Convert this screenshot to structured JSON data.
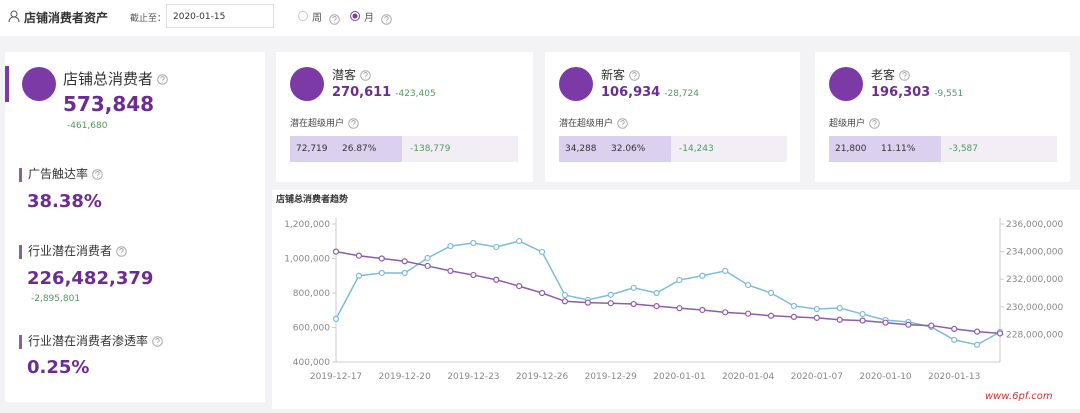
{
  "header": {
    "title": "店铺消费者资产",
    "date_label": "截止至：",
    "date": "2020-01-15",
    "options": [
      "周",
      "月"
    ],
    "selected": 1
  },
  "summary": {
    "total": {
      "label": "店铺总消费者",
      "value": "573,848",
      "change": "-461,680"
    },
    "reach": {
      "label": "广告触达率",
      "value": "38.38%"
    },
    "industry": {
      "label": "行业潜在消费者",
      "value": "226,482,379",
      "change": "-2,895,801"
    },
    "penetration": {
      "label": "行业潜在消费者渗透率",
      "value": "0.25%"
    }
  },
  "cards": [
    {
      "label": "潜客",
      "value": "270,611",
      "change": "-423,405",
      "sub_label": "潜在超级用户",
      "sub_value": "72,719",
      "sub_pct": "26.87%",
      "sub_change": "-138,779"
    },
    {
      "label": "新客",
      "value": "106,934",
      "change": "-28,724",
      "sub_label": "潜在超级用户",
      "sub_value": "34,288",
      "sub_pct": "32.06%",
      "sub_change": "-14,243"
    },
    {
      "label": "老客",
      "value": "196,303",
      "change": "-9,551",
      "sub_label": "超级用户",
      "sub_value": "21,800",
      "sub_pct": "11.11%",
      "sub_change": "-3,587"
    }
  ],
  "chart_data": {
    "type": "line",
    "title": "店铺总消费者趋势",
    "categories": [
      "2019-12-17",
      null,
      null,
      "2019-12-20",
      null,
      null,
      "2019-12-23",
      null,
      null,
      "2019-12-26",
      null,
      null,
      "2019-12-29",
      null,
      null,
      "2020-01-01",
      null,
      null,
      "2020-01-04",
      null,
      null,
      "2020-01-07",
      null,
      null,
      "2020-01-10",
      null,
      null,
      "2020-01-13",
      null,
      null
    ],
    "series": [
      {
        "color": "#7cbcdb",
        "values": [
          650000,
          900000,
          916000,
          916000,
          1003000,
          1072000,
          1090000,
          1067000,
          1101000,
          1038000,
          788000,
          760000,
          790000,
          830000,
          800000,
          875000,
          900000,
          928000,
          846000,
          800000,
          725000,
          707000,
          713000,
          678000,
          643000,
          632000,
          603000,
          528000,
          500000,
          574000
        ]
      },
      {
        "color": "#8e5ca8",
        "axis": "y2",
        "values": [
          234000000,
          233700000,
          233500000,
          233300000,
          232960000,
          232600000,
          232300000,
          231960000,
          231500000,
          231000000,
          230400000,
          230300000,
          230260000,
          230200000,
          230050000,
          229900000,
          229770000,
          229600000,
          229500000,
          229350000,
          229270000,
          229200000,
          229060000,
          229000000,
          228850000,
          228700000,
          228640000,
          228400000,
          228200000,
          228070000
        ]
      }
    ],
    "ylim": [
      400000,
      1200000
    ],
    "yticks": [
      {
        "value": 400000,
        "label": "400,000"
      },
      {
        "value": 600000,
        "label": "600,000"
      },
      {
        "value": 800000,
        "label": "800,000"
      },
      {
        "value": 1000000,
        "label": "1,000,000"
      },
      {
        "value": 1200000,
        "label": "1,200,000"
      }
    ],
    "y2lim": [
      226000000,
      236000000
    ],
    "y2ticks": [
      {
        "value": 228000000,
        "label": "228,000,000"
      },
      {
        "value": 230000000,
        "label": "230,000,000"
      },
      {
        "value": 232000000,
        "label": "232,000,000"
      },
      {
        "value": 234000000,
        "label": "234,000,000"
      },
      {
        "value": 236000000,
        "label": "236,000,000"
      }
    ]
  },
  "watermark": "www.6pf.com"
}
